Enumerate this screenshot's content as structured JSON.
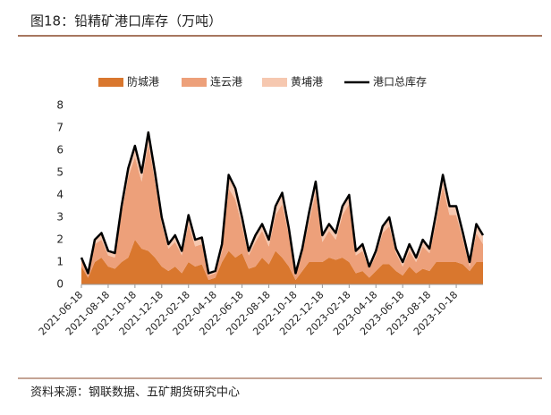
{
  "chart_data": {
    "type": "area",
    "title": "图18：铅精矿港口库存（万吨）",
    "source": "资料来源：钢联数据、五矿期货研究中心",
    "categories": [
      "2021-06-18",
      null,
      null,
      null,
      "2021-08-18",
      null,
      null,
      null,
      "2021-10-18",
      null,
      null,
      null,
      "2021-12-18",
      null,
      null,
      null,
      "2022-02-18",
      null,
      null,
      null,
      "2022-04-18",
      null,
      null,
      null,
      "2022-06-18",
      null,
      null,
      null,
      "2022-08-18",
      null,
      null,
      null,
      "2022-10-18",
      null,
      null,
      null,
      "2022-12-18",
      null,
      null,
      null,
      "2023-02-18",
      null,
      null,
      null,
      "2023-04-18",
      null,
      null,
      null,
      "2023-06-18",
      null,
      null,
      null,
      "2023-08-18",
      null,
      null,
      null,
      "2023-10-18",
      null,
      null,
      null,
      null
    ],
    "series": [
      {
        "name": "防城港",
        "color": "#d9772e",
        "type": "area",
        "values": [
          0.8,
          0.3,
          1.0,
          1.2,
          0.8,
          0.7,
          1.0,
          1.2,
          2.0,
          1.6,
          1.5,
          1.2,
          0.8,
          0.6,
          0.8,
          0.5,
          1.0,
          0.8,
          0.9,
          0.2,
          0.3,
          1.0,
          1.5,
          1.2,
          1.4,
          0.7,
          0.8,
          1.2,
          0.9,
          1.5,
          1.2,
          0.8,
          0.2,
          0.6,
          1.0,
          1.0,
          1.0,
          1.2,
          1.1,
          1.2,
          1.0,
          0.5,
          0.6,
          0.3,
          0.6,
          0.9,
          0.9,
          0.6,
          0.4,
          0.8,
          0.5,
          0.7,
          0.6,
          1.0,
          1.0,
          1.0,
          1.0,
          0.9,
          0.6,
          1.0,
          1.0
        ]
      },
      {
        "name": "连云港",
        "color": "#eda07a",
        "type": "area",
        "values": [
          0.3,
          0.1,
          0.8,
          0.8,
          0.5,
          0.5,
          2.2,
          3.6,
          3.7,
          3.0,
          4.8,
          3.4,
          1.9,
          1.0,
          1.1,
          0.8,
          1.7,
          0.9,
          0.9,
          0.2,
          0.2,
          0.5,
          2.8,
          2.6,
          1.2,
          0.6,
          1.1,
          1.2,
          0.8,
          1.6,
          2.4,
          1.4,
          0.2,
          0.8,
          1.8,
          3.1,
          0.9,
          1.2,
          0.9,
          1.9,
          2.6,
          0.8,
          0.9,
          0.4,
          0.7,
          1.4,
          1.7,
          0.8,
          0.4,
          0.7,
          0.5,
          1.0,
          0.8,
          1.8,
          3.4,
          2.1,
          2.1,
          1.1,
          0.2,
          1.3,
          0.8
        ]
      },
      {
        "name": "黄埔港",
        "color": "#f6c8b0",
        "type": "area",
        "values": [
          0.1,
          0.1,
          0.2,
          0.3,
          0.2,
          0.2,
          0.3,
          0.4,
          0.5,
          0.4,
          0.5,
          0.4,
          0.3,
          0.2,
          0.3,
          0.2,
          0.4,
          0.3,
          0.3,
          0.1,
          0.1,
          0.3,
          0.6,
          0.5,
          0.4,
          0.2,
          0.3,
          0.3,
          0.3,
          0.4,
          0.5,
          0.3,
          0.1,
          0.2,
          0.4,
          0.5,
          0.3,
          0.3,
          0.3,
          0.4,
          0.4,
          0.2,
          0.3,
          0.1,
          0.2,
          0.3,
          0.4,
          0.2,
          0.2,
          0.3,
          0.2,
          0.3,
          0.2,
          0.4,
          0.5,
          0.4,
          0.4,
          0.3,
          0.2,
          0.4,
          0.4
        ]
      },
      {
        "name": "港口总库存",
        "color": "#000000",
        "type": "line",
        "values": [
          1.2,
          0.5,
          2.0,
          2.3,
          1.5,
          1.4,
          3.5,
          5.2,
          6.2,
          5.0,
          6.8,
          5.0,
          3.0,
          1.8,
          2.2,
          1.5,
          3.1,
          2.0,
          2.1,
          0.5,
          0.6,
          1.8,
          4.9,
          4.3,
          3.0,
          1.5,
          2.2,
          2.7,
          2.0,
          3.5,
          4.1,
          2.5,
          0.5,
          1.6,
          3.2,
          4.6,
          2.2,
          2.7,
          2.3,
          3.5,
          4.0,
          1.5,
          1.8,
          0.8,
          1.5,
          2.6,
          3.0,
          1.6,
          1.0,
          1.8,
          1.2,
          2.0,
          1.6,
          3.2,
          4.9,
          3.5,
          3.5,
          2.3,
          1.0,
          2.7,
          2.2
        ]
      }
    ],
    "ylim": [
      0,
      8
    ],
    "yticks": [
      0,
      1,
      2,
      3,
      4,
      5,
      6,
      7,
      8
    ]
  }
}
